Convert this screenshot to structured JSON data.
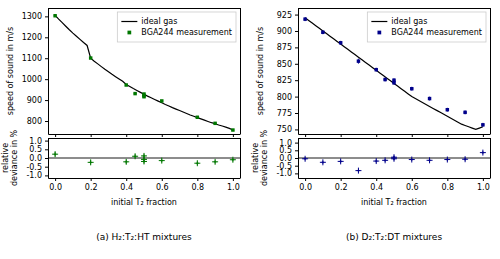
{
  "chart_data": [
    {
      "type": "line",
      "ylabel": "speed of sound in m/s",
      "xlim": [
        -0.04,
        1.04
      ],
      "xticks": [
        0,
        0.2,
        0.4,
        0.6,
        0.8,
        1
      ],
      "ylim": [
        738,
        1340
      ],
      "yticks": [
        800,
        900,
        1000,
        1100,
        1200,
        1300
      ],
      "tick_labels": "y",
      "legend": "top-right",
      "series": [
        {
          "name": "ideal gas",
          "type": "line",
          "color": "#000000",
          "x": [
            0.0,
            0.02,
            0.04,
            0.06,
            0.08,
            0.1,
            0.12,
            0.14,
            0.16,
            0.18,
            0.2,
            0.22,
            0.24,
            0.26,
            0.28,
            0.3,
            0.32,
            0.34,
            0.36,
            0.38,
            0.4,
            0.42,
            0.44,
            0.46,
            0.48,
            0.5,
            0.52,
            0.54,
            0.56,
            0.58,
            0.6,
            0.62,
            0.64,
            0.66,
            0.68,
            0.7,
            0.72,
            0.74,
            0.76,
            0.78,
            0.8,
            0.82,
            0.84,
            0.86,
            0.88,
            0.9,
            0.92,
            0.94,
            0.96,
            0.98,
            1.0
          ],
          "values": [
            1305,
            1287,
            1270,
            1253,
            1236,
            1220,
            1205,
            1190,
            1175,
            1161,
            1100,
            1086,
            1073,
            1060,
            1047,
            1035,
            1023,
            1012,
            1001,
            990,
            975,
            965,
            955,
            946,
            937,
            928,
            919,
            911,
            903,
            895,
            887,
            879,
            872,
            864,
            857,
            850,
            843,
            836,
            829,
            823,
            816,
            810,
            804,
            798,
            792,
            787,
            781,
            776,
            771,
            765,
            757
          ]
        },
        {
          "name": "BGA244 measurement",
          "type": "scatter",
          "marker": "square",
          "color": "#007700",
          "x": [
            0.0,
            0.2,
            0.4,
            0.45,
            0.5,
            0.5,
            0.5,
            0.6,
            0.8,
            0.9,
            1.0
          ],
          "values": [
            1303,
            1101,
            972,
            931,
            929,
            921,
            916,
            896,
            818,
            789,
            757
          ],
          "yerr": [
            4,
            4,
            4,
            4,
            4,
            4,
            4,
            3,
            3,
            3,
            3
          ],
          "xerr": [
            0.008,
            0.008,
            0.008,
            0.008,
            0.008,
            0.008,
            0.008,
            0.008,
            0.008,
            0.008,
            0.008
          ]
        }
      ]
    },
    {
      "type": "scatter",
      "title": "(a) H₂:T₂:HT mixtures",
      "xlabel": "initial T₂ fraction",
      "ylabel": "relative\ndeviance in %",
      "xlim": [
        -0.04,
        1.04
      ],
      "xticks": [
        {
          "value": 0,
          "label": "0.0"
        },
        0.2,
        0.4,
        0.6,
        0.8,
        {
          "value": 1,
          "label": "1.0"
        }
      ],
      "ylim": [
        -1.15,
        1.15
      ],
      "yticks": [
        {
          "value": -1,
          "label": "-1.0"
        },
        -0.5,
        {
          "value": 0,
          "label": "0.0"
        },
        0.5,
        {
          "value": 1,
          "label": "1.0"
        }
      ],
      "hlines": [
        0
      ],
      "series": [
        {
          "type": "scatter",
          "marker": "plus",
          "color": "#007700",
          "x": [
            0.0,
            0.2,
            0.4,
            0.45,
            0.5,
            0.5,
            0.5,
            0.6,
            0.8,
            0.9,
            1.0
          ],
          "values": [
            0.22,
            -0.25,
            -0.22,
            0.1,
            0.12,
            -0.08,
            -0.2,
            -0.15,
            -0.3,
            -0.22,
            -0.1
          ],
          "yerr": [
            0.13,
            0.12,
            0.12,
            0.12,
            0.12,
            0.12,
            0.12,
            0.1,
            0.1,
            0.1,
            0.1
          ],
          "xerr": [
            0.008,
            0.008,
            0.008,
            0.008,
            0.008,
            0.008,
            0.008,
            0.008,
            0.008,
            0.008,
            0.008
          ]
        }
      ]
    },
    {
      "type": "line",
      "ylabel": "speed of sound in m/s",
      "xlim": [
        -0.04,
        1.04
      ],
      "xticks": [
        0,
        0.2,
        0.4,
        0.6,
        0.8,
        1
      ],
      "ylim": [
        743,
        935
      ],
      "yticks": [
        750,
        775,
        800,
        825,
        850,
        875,
        900,
        925
      ],
      "tick_labels": "y",
      "legend": "top-right",
      "series": [
        {
          "name": "ideal gas",
          "type": "line",
          "color": "#000000",
          "x": [
            0.0,
            0.02,
            0.04,
            0.06,
            0.08,
            0.1,
            0.12,
            0.14,
            0.16,
            0.18,
            0.2,
            0.22,
            0.24,
            0.26,
            0.28,
            0.3,
            0.32,
            0.34,
            0.36,
            0.38,
            0.4,
            0.42,
            0.44,
            0.46,
            0.48,
            0.5,
            0.52,
            0.54,
            0.56,
            0.58,
            0.6,
            0.62,
            0.64,
            0.66,
            0.68,
            0.7,
            0.72,
            0.74,
            0.76,
            0.78,
            0.8,
            0.82,
            0.84,
            0.86,
            0.88,
            0.9,
            0.92,
            0.94,
            0.96,
            0.98,
            1.0
          ],
          "values": [
            920,
            916,
            912,
            908,
            904,
            900,
            896,
            892,
            888,
            884,
            880,
            876,
            872,
            868,
            864,
            860,
            856,
            852,
            848,
            844,
            840,
            836,
            832,
            828,
            824,
            820,
            816,
            812,
            808,
            804,
            800,
            797,
            794,
            791,
            788,
            785,
            782,
            779,
            776,
            773,
            770,
            767,
            764,
            761,
            758,
            756,
            754,
            752,
            750,
            752,
            754
          ]
        },
        {
          "name": "BGA244 measurement",
          "type": "scatter",
          "marker": "square",
          "color": "#00008B",
          "x": [
            0.0,
            0.1,
            0.2,
            0.3,
            0.4,
            0.45,
            0.5,
            0.5,
            0.6,
            0.7,
            0.8,
            0.9,
            1.0
          ],
          "values": [
            918,
            898,
            882,
            854,
            841,
            826,
            825,
            821,
            812,
            797,
            780,
            776,
            757
          ],
          "yerr": [
            3,
            3,
            3,
            4,
            3,
            3,
            3,
            3,
            3,
            3,
            3,
            3,
            3
          ],
          "xerr": [
            0.008,
            0.008,
            0.008,
            0.008,
            0.008,
            0.008,
            0.008,
            0.008,
            0.008,
            0.008,
            0.008,
            0.008,
            0.008
          ]
        }
      ]
    },
    {
      "type": "scatter",
      "title": "(b) D₂:T₂:DT mixtures",
      "xlabel": "initial T₂ fraction",
      "ylabel": "relative\ndeviance in %",
      "xlim": [
        -0.04,
        1.04
      ],
      "xticks": [
        {
          "value": 0,
          "label": "0.0"
        },
        0.2,
        0.4,
        0.6,
        0.8,
        {
          "value": 1,
          "label": "1.0"
        }
      ],
      "ylim": [
        -1.3,
        1.3
      ],
      "yticks": [
        {
          "value": -1,
          "label": "-1.0"
        },
        -0.5,
        {
          "value": 0,
          "label": "0.0"
        },
        0.5,
        {
          "value": 1,
          "label": "1.0"
        }
      ],
      "hlines": [
        0
      ],
      "series": [
        {
          "type": "scatter",
          "marker": "plus",
          "color": "#00008B",
          "x": [
            0.0,
            0.1,
            0.2,
            0.3,
            0.4,
            0.45,
            0.5,
            0.5,
            0.6,
            0.7,
            0.8,
            0.9,
            1.0
          ],
          "values": [
            -0.05,
            -0.28,
            -0.22,
            -0.82,
            -0.2,
            -0.15,
            0.05,
            -0.05,
            -0.1,
            -0.15,
            -0.1,
            -0.08,
            0.35
          ],
          "yerr": [
            0.1,
            0.1,
            0.1,
            0.12,
            0.1,
            0.1,
            0.1,
            0.1,
            0.1,
            0.1,
            0.1,
            0.1,
            0.1
          ],
          "xerr": [
            0.008,
            0.008,
            0.008,
            0.008,
            0.008,
            0.008,
            0.008,
            0.008,
            0.008,
            0.008,
            0.008,
            0.008,
            0.008
          ]
        }
      ]
    }
  ]
}
